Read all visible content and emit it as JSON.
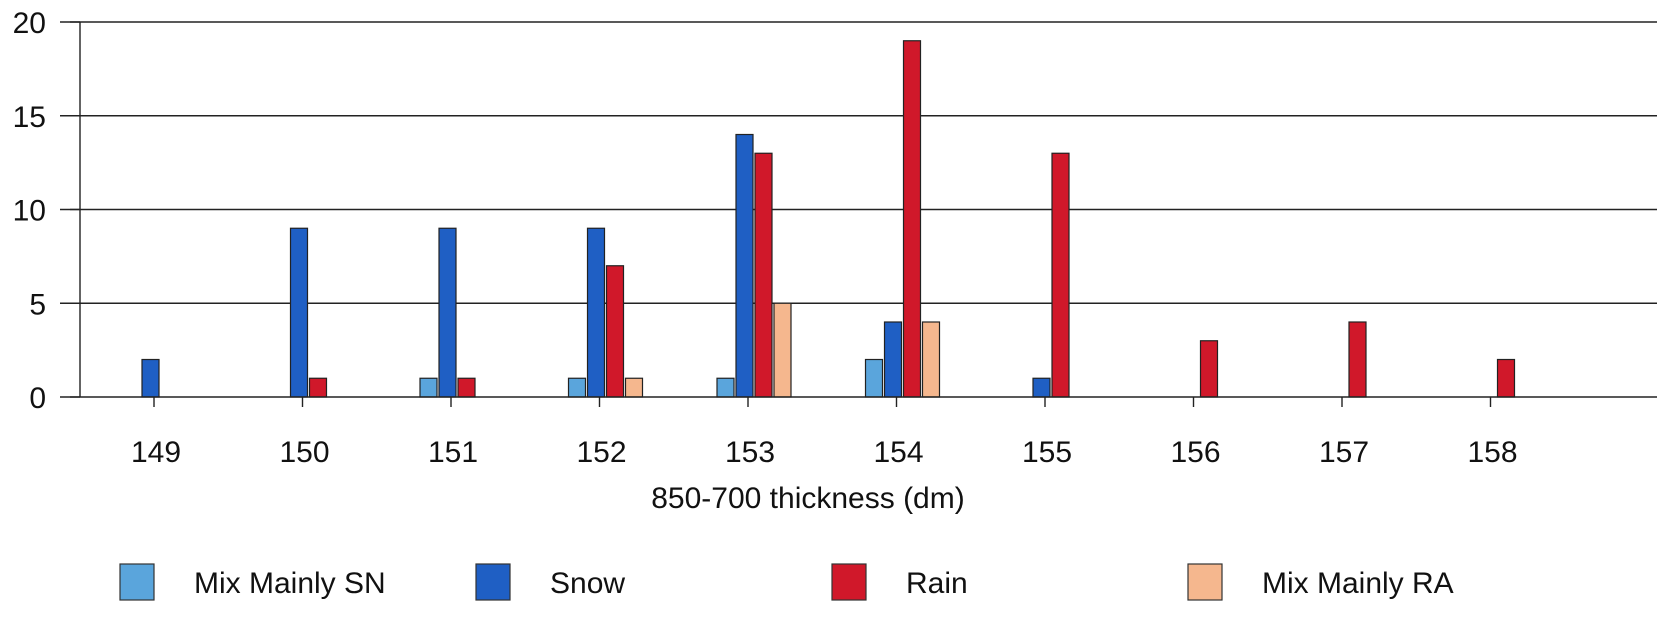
{
  "chart_data": {
    "type": "bar",
    "title": "",
    "xlabel": "850-700 thickness (dm)",
    "ylabel": "",
    "categories": [
      "149",
      "150",
      "151",
      "152",
      "153",
      "154",
      "155",
      "156",
      "157",
      "158"
    ],
    "ylim": [
      0,
      20
    ],
    "yticks": [
      "0",
      "5",
      "10",
      "15",
      "20"
    ],
    "grid": true,
    "legend_position": "bottom",
    "series": [
      {
        "name": "Mix Mainly SN",
        "color": "#5aa5dc",
        "values": [
          0,
          0,
          1,
          1,
          1,
          2,
          0,
          0,
          0,
          0
        ]
      },
      {
        "name": "Snow",
        "color": "#1f5fc4",
        "values": [
          2,
          9,
          9,
          9,
          14,
          4,
          1,
          0,
          0,
          0
        ]
      },
      {
        "name": "Rain",
        "color": "#d0182a",
        "values": [
          0,
          1,
          1,
          7,
          13,
          19,
          13,
          3,
          4,
          2
        ]
      },
      {
        "name": "Mix Mainly RA",
        "color": "#f5b78e",
        "values": [
          0,
          0,
          0,
          1,
          5,
          4,
          0,
          0,
          0,
          0
        ]
      }
    ]
  }
}
